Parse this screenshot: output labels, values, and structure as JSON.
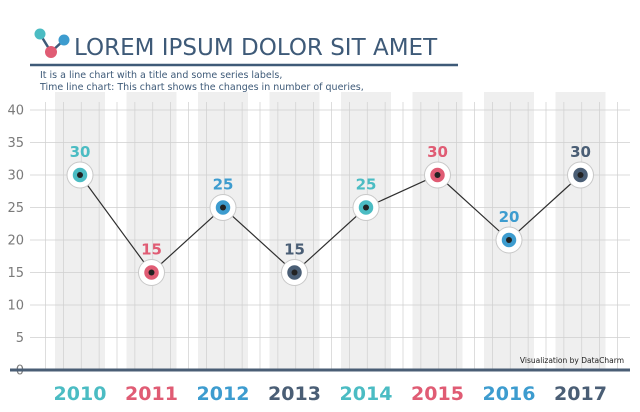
{
  "chart_data": {
    "type": "line",
    "title": "LOREM IPSUM DOLOR SIT AMET",
    "subtitle_lines": [
      "It is a line chart with a title and some series labels,",
      "Time line chart: This chart shows the changes in number of queries,"
    ],
    "credit": "Visualization by DataCharm",
    "x": [
      "2010",
      "2011",
      "2012",
      "2013",
      "2014",
      "2015",
      "2016",
      "2017"
    ],
    "values": [
      30,
      15,
      25,
      15,
      25,
      30,
      20,
      30
    ],
    "ylim": [
      0,
      40
    ],
    "yticks": [
      "0",
      "5",
      "10",
      "15",
      "20",
      "25",
      "30",
      "35",
      "40"
    ],
    "grid": true,
    "point_colors": [
      "#4bbcc3",
      "#e05c74",
      "#3d9ccf",
      "#4a5e75",
      "#4bbcc3",
      "#e05c74",
      "#3d9ccf",
      "#4a5e75"
    ]
  },
  "colors": {
    "title": "#3e5a78",
    "axis": "#4a5e75",
    "band": "#efefef",
    "grid": "#cfcfcf",
    "line": "#2f2f2f",
    "tick_text": "#7a7a7a"
  },
  "logo": {
    "icon": "molecule-logo-icon"
  }
}
